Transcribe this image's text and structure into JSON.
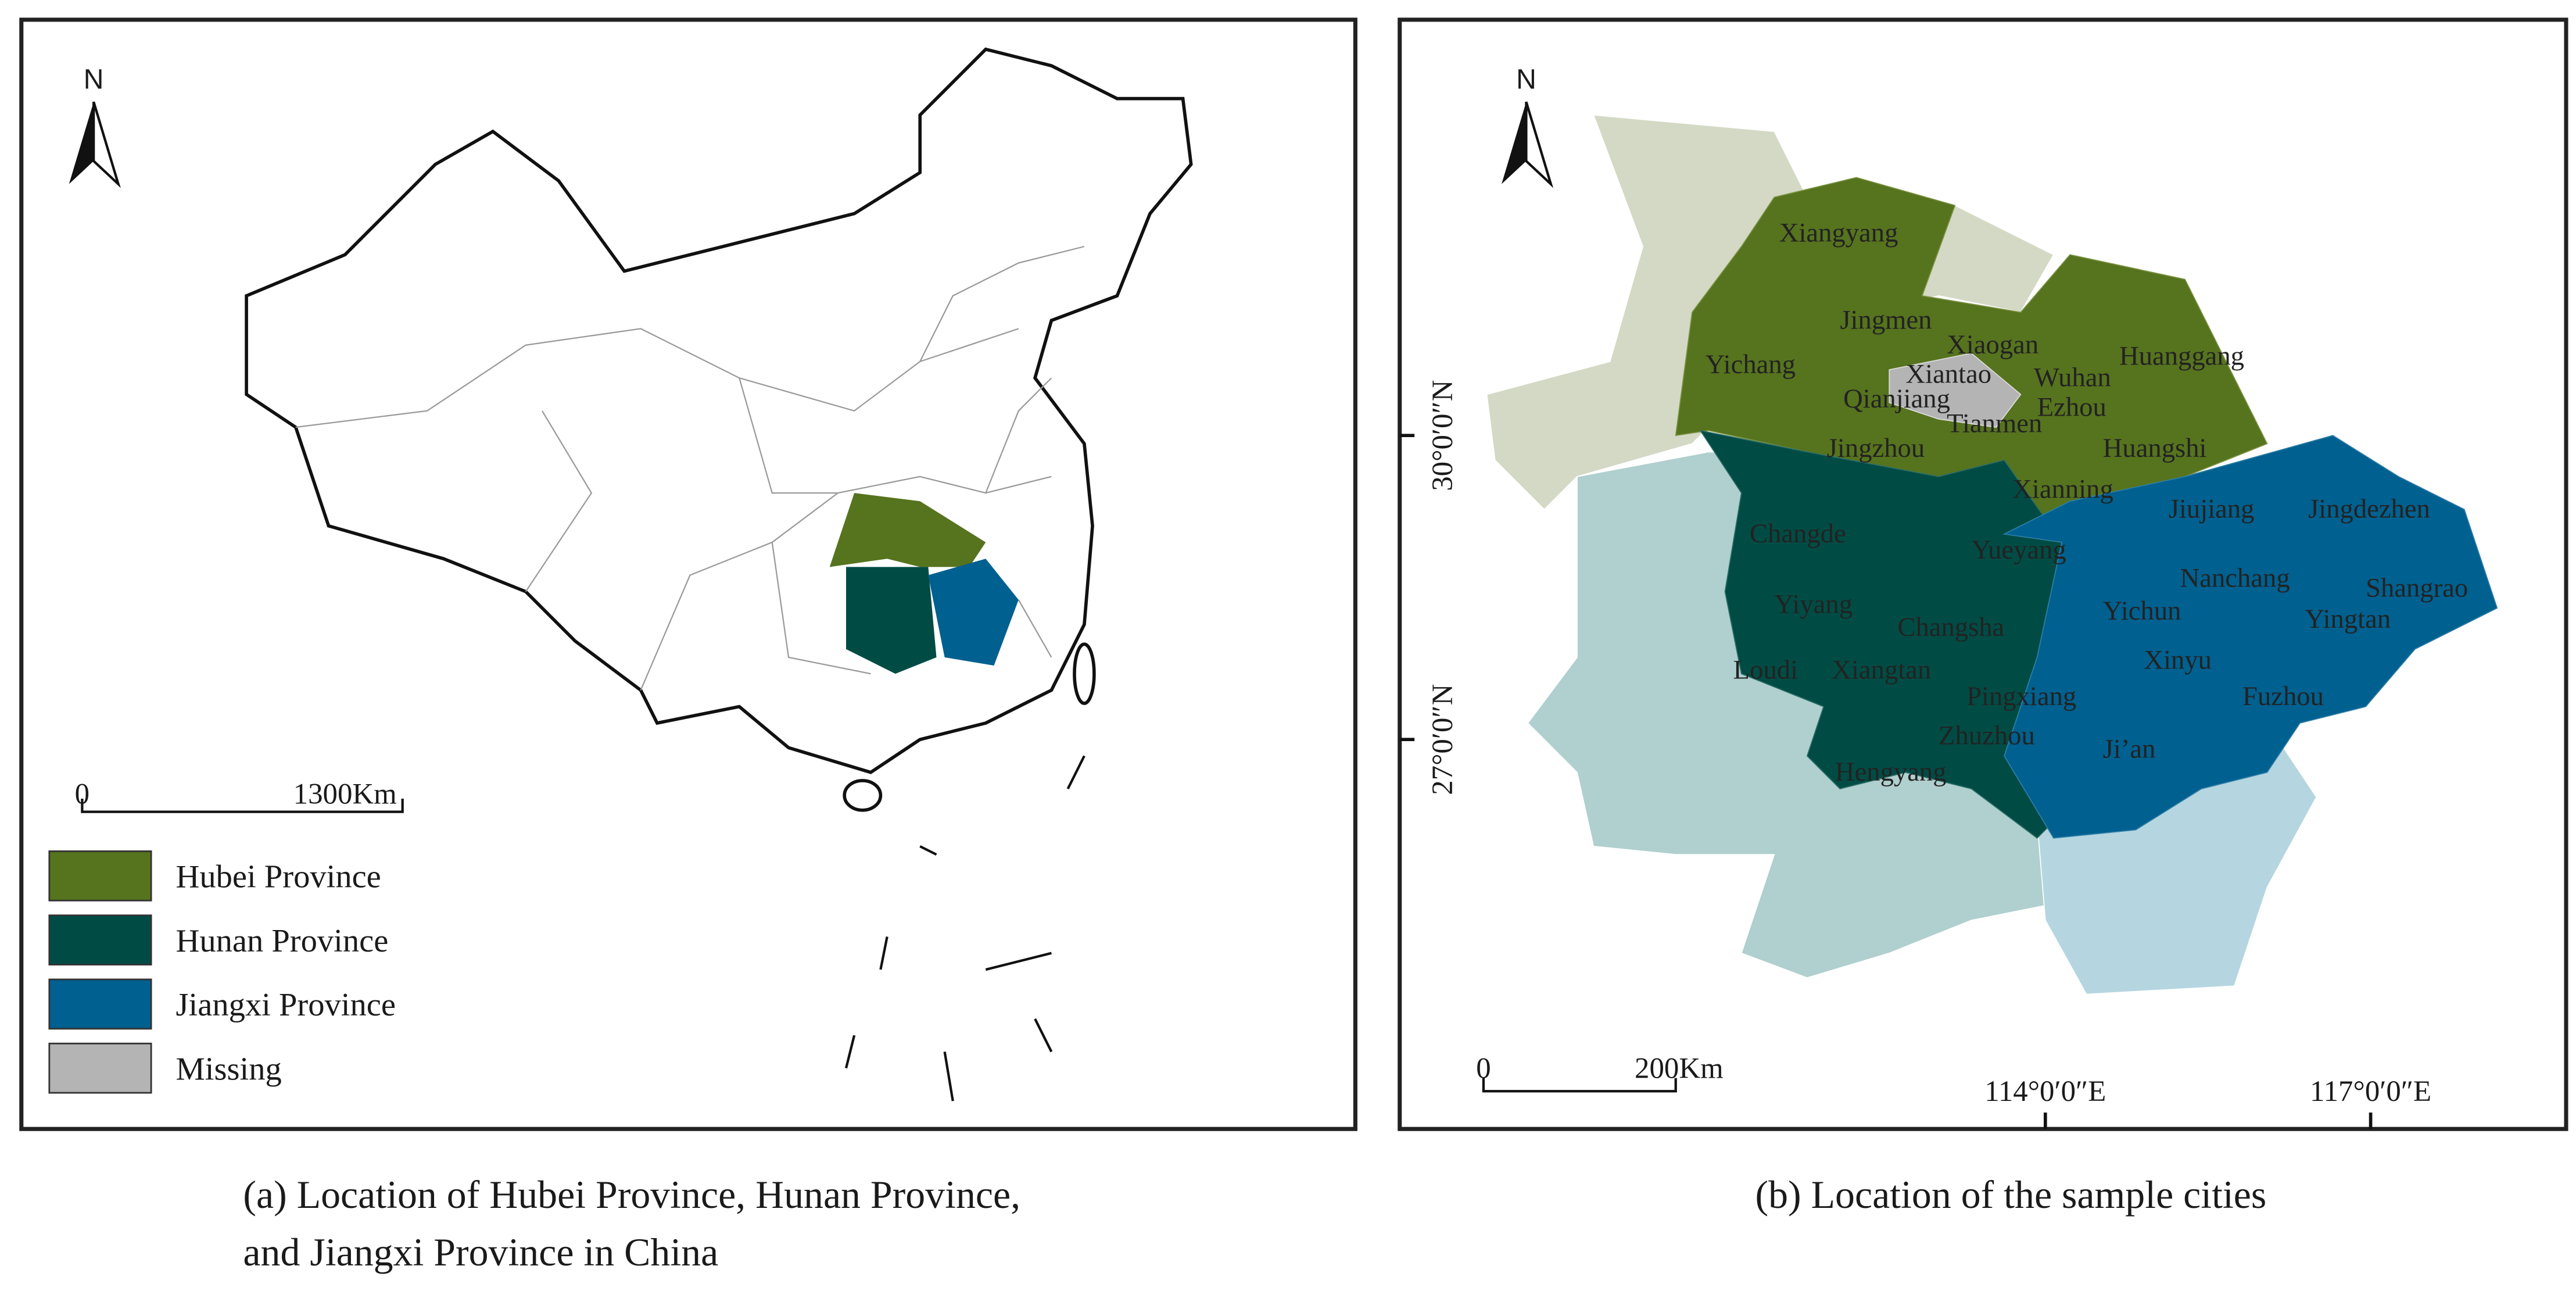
{
  "panel_a": {
    "north": "N",
    "scale_bar": {
      "start": "0",
      "end": "1300Km"
    },
    "legend": [
      {
        "label": "Hubei Province",
        "color": "#56731e"
      },
      {
        "label": "Hunan Province",
        "color": "#004c45"
      },
      {
        "label": "Jiangxi Province",
        "color": "#00608f"
      },
      {
        "label": "Missing",
        "color": "#b4b4b4"
      }
    ],
    "caption": [
      "(a) Location of Hubei Province, Hunan Province,",
      "and Jiangxi Province in China"
    ]
  },
  "panel_b": {
    "north": "N",
    "cities": [
      "Xiangyang",
      "Jingmen",
      "Xiaogan",
      "Huanggang",
      "Yichang",
      "Xiantao",
      "Wuhan",
      "Qianjiang",
      "Ezhou",
      "Tianmen",
      "Jingzhou",
      "Huangshi",
      "Xianning",
      "Jiujiang",
      "Jingdezhen",
      "Changde",
      "Yueyang",
      "Nanchang",
      "Shangrao",
      "Yiyang",
      "Changsha",
      "Yichun",
      "Yingtan",
      "Loudi",
      "Xiangtan",
      "Xinyu",
      "Pingxiang",
      "Fuzhou",
      "Zhuzhou",
      "Ji’an",
      "Hengyang"
    ],
    "latitude_labels": [
      "30°0′0″N",
      "27°0′0″N"
    ],
    "longitude_labels": [
      "114°0′0″E",
      "117°0′0″E"
    ],
    "scale_bar": {
      "start": "0",
      "end": "200Km"
    },
    "caption": "(b) Location of the sample cities"
  }
}
